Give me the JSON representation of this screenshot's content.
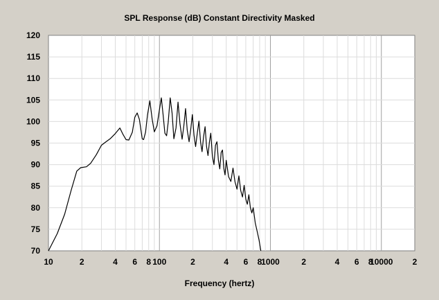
{
  "chart_data": {
    "type": "line",
    "title": "SPL Response (dB)   Constant Directivity   Masked",
    "xlabel": "Frequency (hertz)",
    "ylabel": "",
    "x_scale": "log",
    "xlim": [
      10,
      20000
    ],
    "ylim": [
      70,
      120
    ],
    "yticks": [
      70,
      75,
      80,
      85,
      90,
      95,
      100,
      105,
      110,
      115,
      120
    ],
    "xtick_labels": [
      {
        "value": 10,
        "label": "10"
      },
      {
        "value": 20,
        "label": "2"
      },
      {
        "value": 40,
        "label": "4"
      },
      {
        "value": 60,
        "label": "6"
      },
      {
        "value": 80,
        "label": "8"
      },
      {
        "value": 100,
        "label": "100"
      },
      {
        "value": 200,
        "label": "2"
      },
      {
        "value": 400,
        "label": "4"
      },
      {
        "value": 600,
        "label": "6"
      },
      {
        "value": 800,
        "label": "8"
      },
      {
        "value": 1000,
        "label": "1000"
      },
      {
        "value": 2000,
        "label": "2"
      },
      {
        "value": 4000,
        "label": "4"
      },
      {
        "value": 6000,
        "label": "6"
      },
      {
        "value": 8000,
        "label": "8"
      },
      {
        "value": 10000,
        "label": "10000"
      },
      {
        "value": 20000,
        "label": "2"
      }
    ],
    "grid": true,
    "series": [
      {
        "color": "#000000",
        "x": [
          10.0,
          12.0,
          14.0,
          16.0,
          18.0,
          19.5,
          22.0,
          24.0,
          27.0,
          30.0,
          33.0,
          36.0,
          40.0,
          44.0,
          47.0,
          50.0,
          53.0,
          57.0,
          60.0,
          63.0,
          66.0,
          70.0,
          72.0,
          75.0,
          78.0,
          82.0,
          86.0,
          90.0,
          95.0,
          100.0,
          104.0,
          108.0,
          112.0,
          116.0,
          120.0,
          125.0,
          130.0,
          135.0,
          141.0,
          147.0,
          153.0,
          160.0,
          166.0,
          172.0,
          178.0,
          185.0,
          192.0,
          198.0,
          205.0,
          212.0,
          220.0,
          227.0,
          235.0,
          242.0,
          250.0,
          258.0,
          266.0,
          274.0,
          282.0,
          290.0,
          300.0,
          310.0,
          320.0,
          330.0,
          340.0,
          350.0,
          360.0,
          370.0,
          380.0,
          390.0,
          400.0,
          420.0,
          440.0,
          460.0,
          480.0,
          500.0,
          520.0,
          540.0,
          560.0,
          580.0,
          600.0,
          620.0,
          640.0,
          660.0,
          680.0,
          700.0,
          730.0,
          760.0,
          790.0,
          820.0
        ],
        "y": [
          70.0,
          74.0,
          78.5,
          84.0,
          88.5,
          89.3,
          89.5,
          90.3,
          92.3,
          94.5,
          95.3,
          96.0,
          97.2,
          98.5,
          97.0,
          95.8,
          95.7,
          97.5,
          101.0,
          102.0,
          100.5,
          96.0,
          95.8,
          97.5,
          101.5,
          104.8,
          100.5,
          97.6,
          99.0,
          102.8,
          105.5,
          101.5,
          97.3,
          96.7,
          99.8,
          105.5,
          102.0,
          96.0,
          98.5,
          104.5,
          99.5,
          95.9,
          99.0,
          103.0,
          98.0,
          95.3,
          98.5,
          101.6,
          96.8,
          94.2,
          97.5,
          100.1,
          95.2,
          93.0,
          96.5,
          98.8,
          94.2,
          92.1,
          95.2,
          97.3,
          92.0,
          90.0,
          94.5,
          95.3,
          91.0,
          89.0,
          92.8,
          93.4,
          89.2,
          87.6,
          91.0,
          87.2,
          86.1,
          89.2,
          86.0,
          84.3,
          87.4,
          84.0,
          82.5,
          85.2,
          82.0,
          80.8,
          83.0,
          80.0,
          78.8,
          80.0,
          76.5,
          74.5,
          72.5,
          70.0
        ]
      }
    ]
  }
}
